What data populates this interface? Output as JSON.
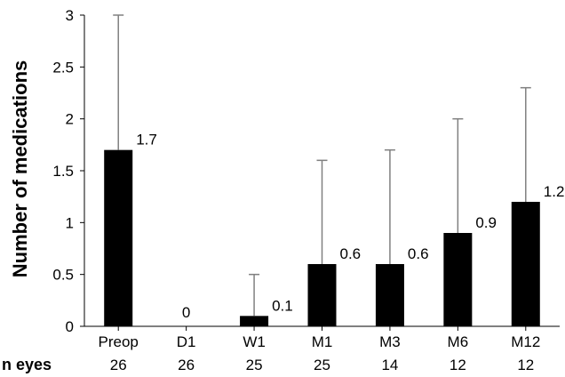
{
  "chart_data": {
    "type": "bar",
    "title": "",
    "xlabel": "",
    "ylabel": "Number of medications",
    "categories": [
      "Preop",
      "D1",
      "W1",
      "M1",
      "M3",
      "M6",
      "M12"
    ],
    "values": [
      1.7,
      0,
      0.1,
      0.6,
      0.6,
      0.9,
      1.2
    ],
    "value_labels": [
      "1.7",
      "0",
      "0.1",
      "0.6",
      "0.6",
      "0.9",
      "1.2"
    ],
    "error_upper": [
      3.0,
      0,
      0.5,
      1.6,
      1.7,
      2.0,
      2.3
    ],
    "ylim": [
      0,
      3
    ],
    "yticks": [
      "0",
      "0.5",
      "1",
      "1.5",
      "2",
      "2.5",
      "3"
    ],
    "n_eyes_label": "n eyes",
    "n_eyes": [
      "26",
      "26",
      "25",
      "25",
      "14",
      "12",
      "12"
    ],
    "grid": false,
    "bar_color": "#000000",
    "error_bar_color": "#808080"
  }
}
